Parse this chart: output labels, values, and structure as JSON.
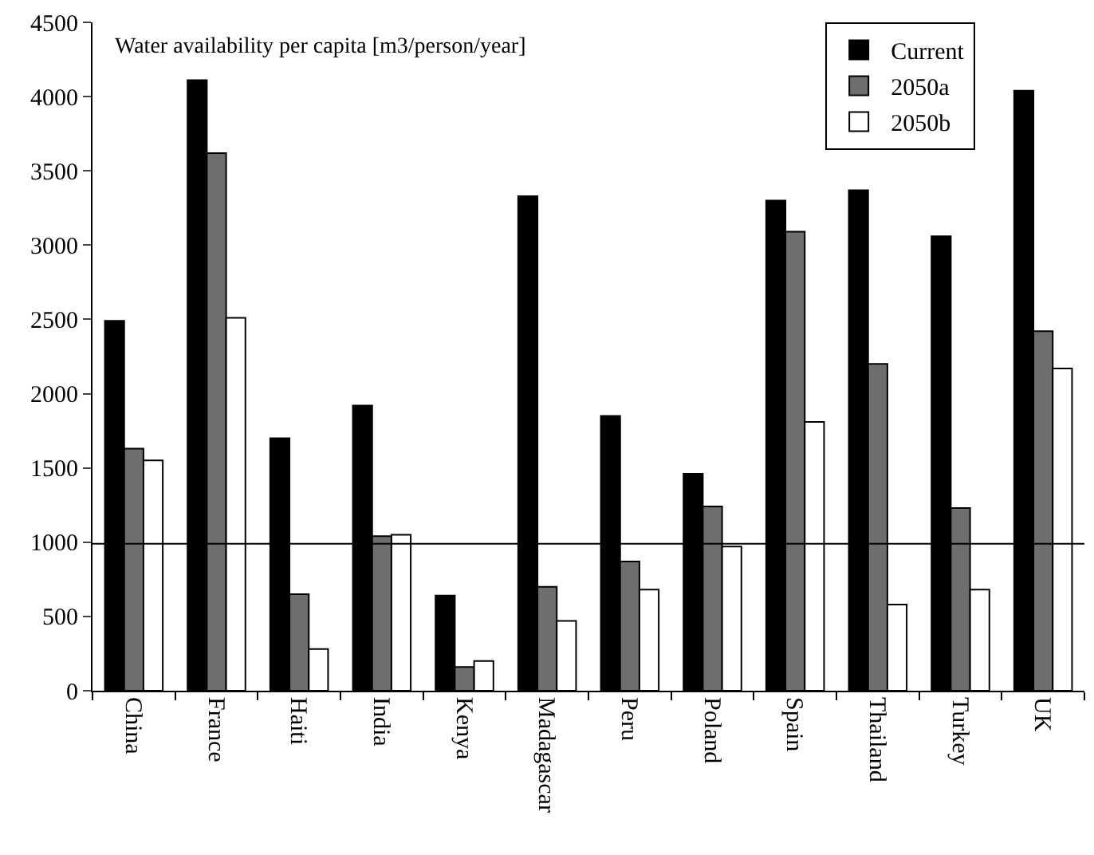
{
  "chart_data": {
    "type": "bar",
    "title": "Water availability per capita [m3/person/year]",
    "categories": [
      "China",
      "France",
      "Haiti",
      "India",
      "Kenya",
      "Madagascar",
      "Peru",
      "Poland",
      "Spain",
      "Thailand",
      "Turkey",
      "UK"
    ],
    "series": [
      {
        "name": "Current",
        "color": "#000000",
        "values": [
          2490,
          4110,
          1700,
          1920,
          640,
          3330,
          1850,
          1460,
          3300,
          3370,
          3060,
          4040
        ]
      },
      {
        "name": "2050a",
        "color": "#6e6e6e",
        "values": [
          1630,
          3620,
          650,
          1040,
          160,
          700,
          870,
          1240,
          3090,
          2200,
          1230,
          2420
        ]
      },
      {
        "name": "2050b",
        "color": "#ffffff",
        "values": [
          1550,
          2510,
          280,
          1050,
          200,
          470,
          680,
          970,
          1810,
          580,
          680,
          2170
        ]
      }
    ],
    "ylim": [
      0,
      4500
    ],
    "yticks": [
      0,
      500,
      1000,
      1500,
      2000,
      2500,
      3000,
      3500,
      4000,
      4500
    ],
    "grid": false,
    "legend": "top right",
    "ref_lines": [
      {
        "axis": "y",
        "value": 990,
        "color": "#000000"
      }
    ]
  }
}
